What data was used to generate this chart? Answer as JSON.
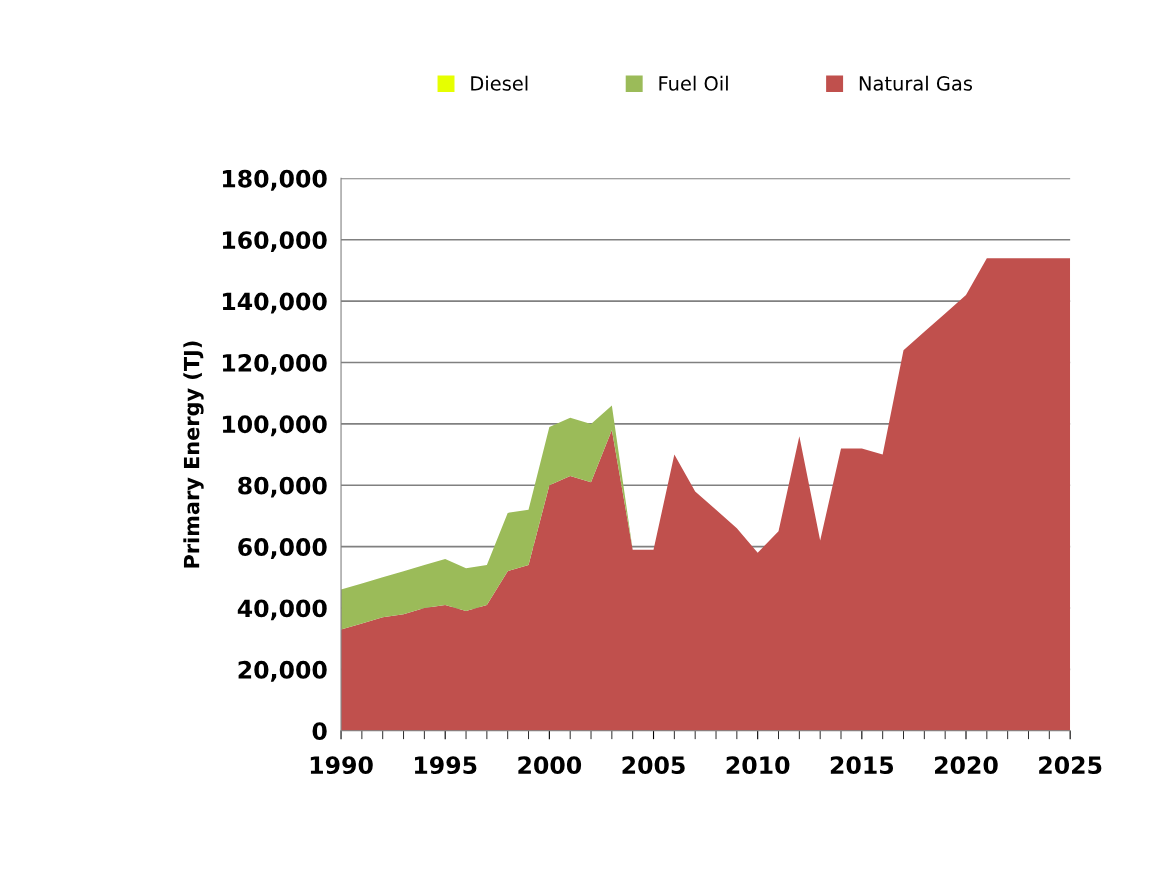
{
  "chart_data": {
    "type": "area",
    "stacked": true,
    "ylabel": "Primary Energy (TJ)",
    "x": [
      1990,
      1991,
      1992,
      1993,
      1994,
      1995,
      1996,
      1997,
      1998,
      1999,
      2000,
      2001,
      2002,
      2003,
      2004,
      2005,
      2006,
      2007,
      2008,
      2009,
      2010,
      2011,
      2012,
      2013,
      2014,
      2015,
      2016,
      2017,
      2018,
      2019,
      2020,
      2021,
      2022,
      2023,
      2024,
      2025
    ],
    "series": [
      {
        "name": "Natural Gas",
        "color": "#c0504d",
        "values": [
          33000,
          35000,
          37000,
          38000,
          40000,
          41000,
          39000,
          41000,
          52000,
          54000,
          80000,
          83000,
          81000,
          98000,
          59000,
          59000,
          90000,
          78000,
          72000,
          66000,
          58000,
          65000,
          96000,
          62000,
          92000,
          92000,
          90000,
          124000,
          130000,
          136000,
          142000,
          154000,
          154000,
          154000,
          154000,
          154000
        ]
      },
      {
        "name": "Fuel Oil",
        "color": "#9bbb59",
        "values": [
          13000,
          13000,
          13000,
          14000,
          14000,
          15000,
          14000,
          13000,
          19000,
          18000,
          19000,
          19000,
          19000,
          8000,
          0,
          0,
          0,
          0,
          0,
          0,
          0,
          0,
          0,
          0,
          0,
          0,
          0,
          0,
          0,
          0,
          0,
          0,
          0,
          0,
          0,
          0
        ]
      },
      {
        "name": "Diesel",
        "color": "#e6ff00",
        "values": [
          null,
          null,
          null,
          null,
          null,
          null,
          null,
          null,
          null,
          null,
          null,
          null,
          null,
          null,
          null,
          null,
          null,
          null,
          null,
          null,
          null,
          null,
          null,
          null,
          null,
          null,
          null,
          null,
          null,
          null,
          null,
          null,
          null,
          null,
          null,
          null
        ]
      }
    ],
    "xlim": [
      1990,
      2025
    ],
    "xticks": [
      1990,
      1995,
      2000,
      2005,
      2010,
      2015,
      2020,
      2025
    ],
    "ylim": [
      0,
      180000
    ],
    "yticks": [
      0,
      {
        "value": 20000,
        "label": "20,000"
      },
      {
        "value": 40000,
        "label": "40,000"
      },
      {
        "value": 60000,
        "label": "60,000"
      },
      {
        "value": 80000,
        "label": "80,000"
      },
      {
        "value": 100000,
        "label": "100,000"
      },
      {
        "value": 120000,
        "label": "120,000"
      },
      {
        "value": 140000,
        "label": "140,000"
      },
      {
        "value": 160000,
        "label": "160,000"
      },
      {
        "value": 180000,
        "label": "180,000"
      }
    ],
    "grid": "y",
    "legend": "top"
  }
}
